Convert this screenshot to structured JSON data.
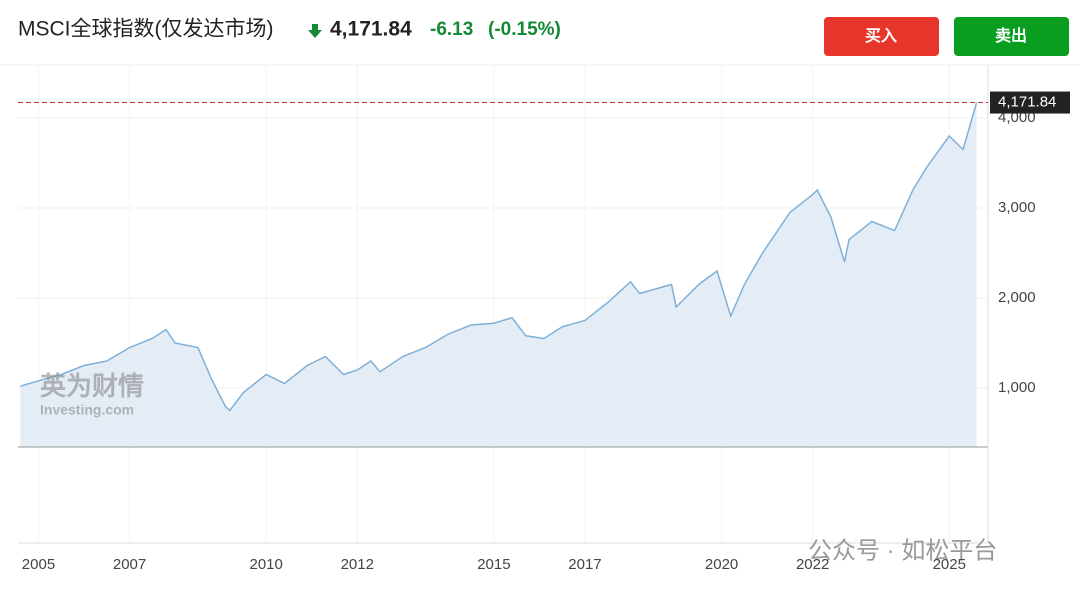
{
  "header": {
    "title": "MSCI全球指数(仅发达市场)",
    "change": "-6.13",
    "change_pct": "(-0.15%)",
    "buy": "买入",
    "sell": "卖出"
  },
  "watermark": {
    "brand": "英为财情",
    "site": "Investing.com",
    "footer": "公众号 · 如松平台"
  },
  "chart_data": {
    "type": "area",
    "color": "#7fb0d8",
    "fill": "#e4edf6",
    "last_price": {
      "value": 4171.84,
      "label": "4,171.84"
    },
    "x": [
      2004.6,
      2005.0,
      2005.5,
      2006.0,
      2006.5,
      2007.0,
      2007.5,
      2007.8,
      2008.0,
      2008.5,
      2008.8,
      2009.1,
      2009.2,
      2009.5,
      2010.0,
      2010.4,
      2010.9,
      2011.3,
      2011.7,
      2012.0,
      2012.3,
      2012.5,
      2013.0,
      2013.5,
      2014.0,
      2014.5,
      2015.0,
      2015.4,
      2015.7,
      2016.1,
      2016.5,
      2017.0,
      2017.5,
      2018.0,
      2018.2,
      2018.9,
      2019.0,
      2019.5,
      2019.9,
      2020.2,
      2020.5,
      2020.9,
      2021.5,
      2022.0,
      2022.1,
      2022.4,
      2022.7,
      2022.8,
      2023.3,
      2023.8,
      2024.2,
      2024.5,
      2025.0,
      2025.3,
      2025.6
    ],
    "values": [
      1020,
      1080,
      1150,
      1250,
      1300,
      1450,
      1550,
      1650,
      1500,
      1450,
      1100,
      800,
      750,
      950,
      1150,
      1050,
      1250,
      1350,
      1150,
      1200,
      1300,
      1180,
      1350,
      1450,
      1600,
      1700,
      1720,
      1780,
      1580,
      1550,
      1680,
      1750,
      1950,
      2180,
      2050,
      2150,
      1900,
      2150,
      2300,
      1800,
      2150,
      2500,
      2950,
      3150,
      3200,
      2900,
      2400,
      2650,
      2850,
      2750,
      3200,
      3450,
      3800,
      3650,
      4171.84
    ],
    "xlim": [
      2004.55,
      2025.85
    ],
    "xticks": [
      2005,
      2007,
      2010,
      2012,
      2015,
      2017,
      2020,
      2022,
      2025
    ],
    "ylim": [
      344,
      4589
    ],
    "yticks": [
      {
        "value": 1000,
        "label": "1,000"
      },
      {
        "value": 2000,
        "label": "2,000"
      },
      {
        "value": 3000,
        "label": "3,000"
      },
      {
        "value": 4000,
        "label": "4,000"
      }
    ],
    "grid": true
  }
}
